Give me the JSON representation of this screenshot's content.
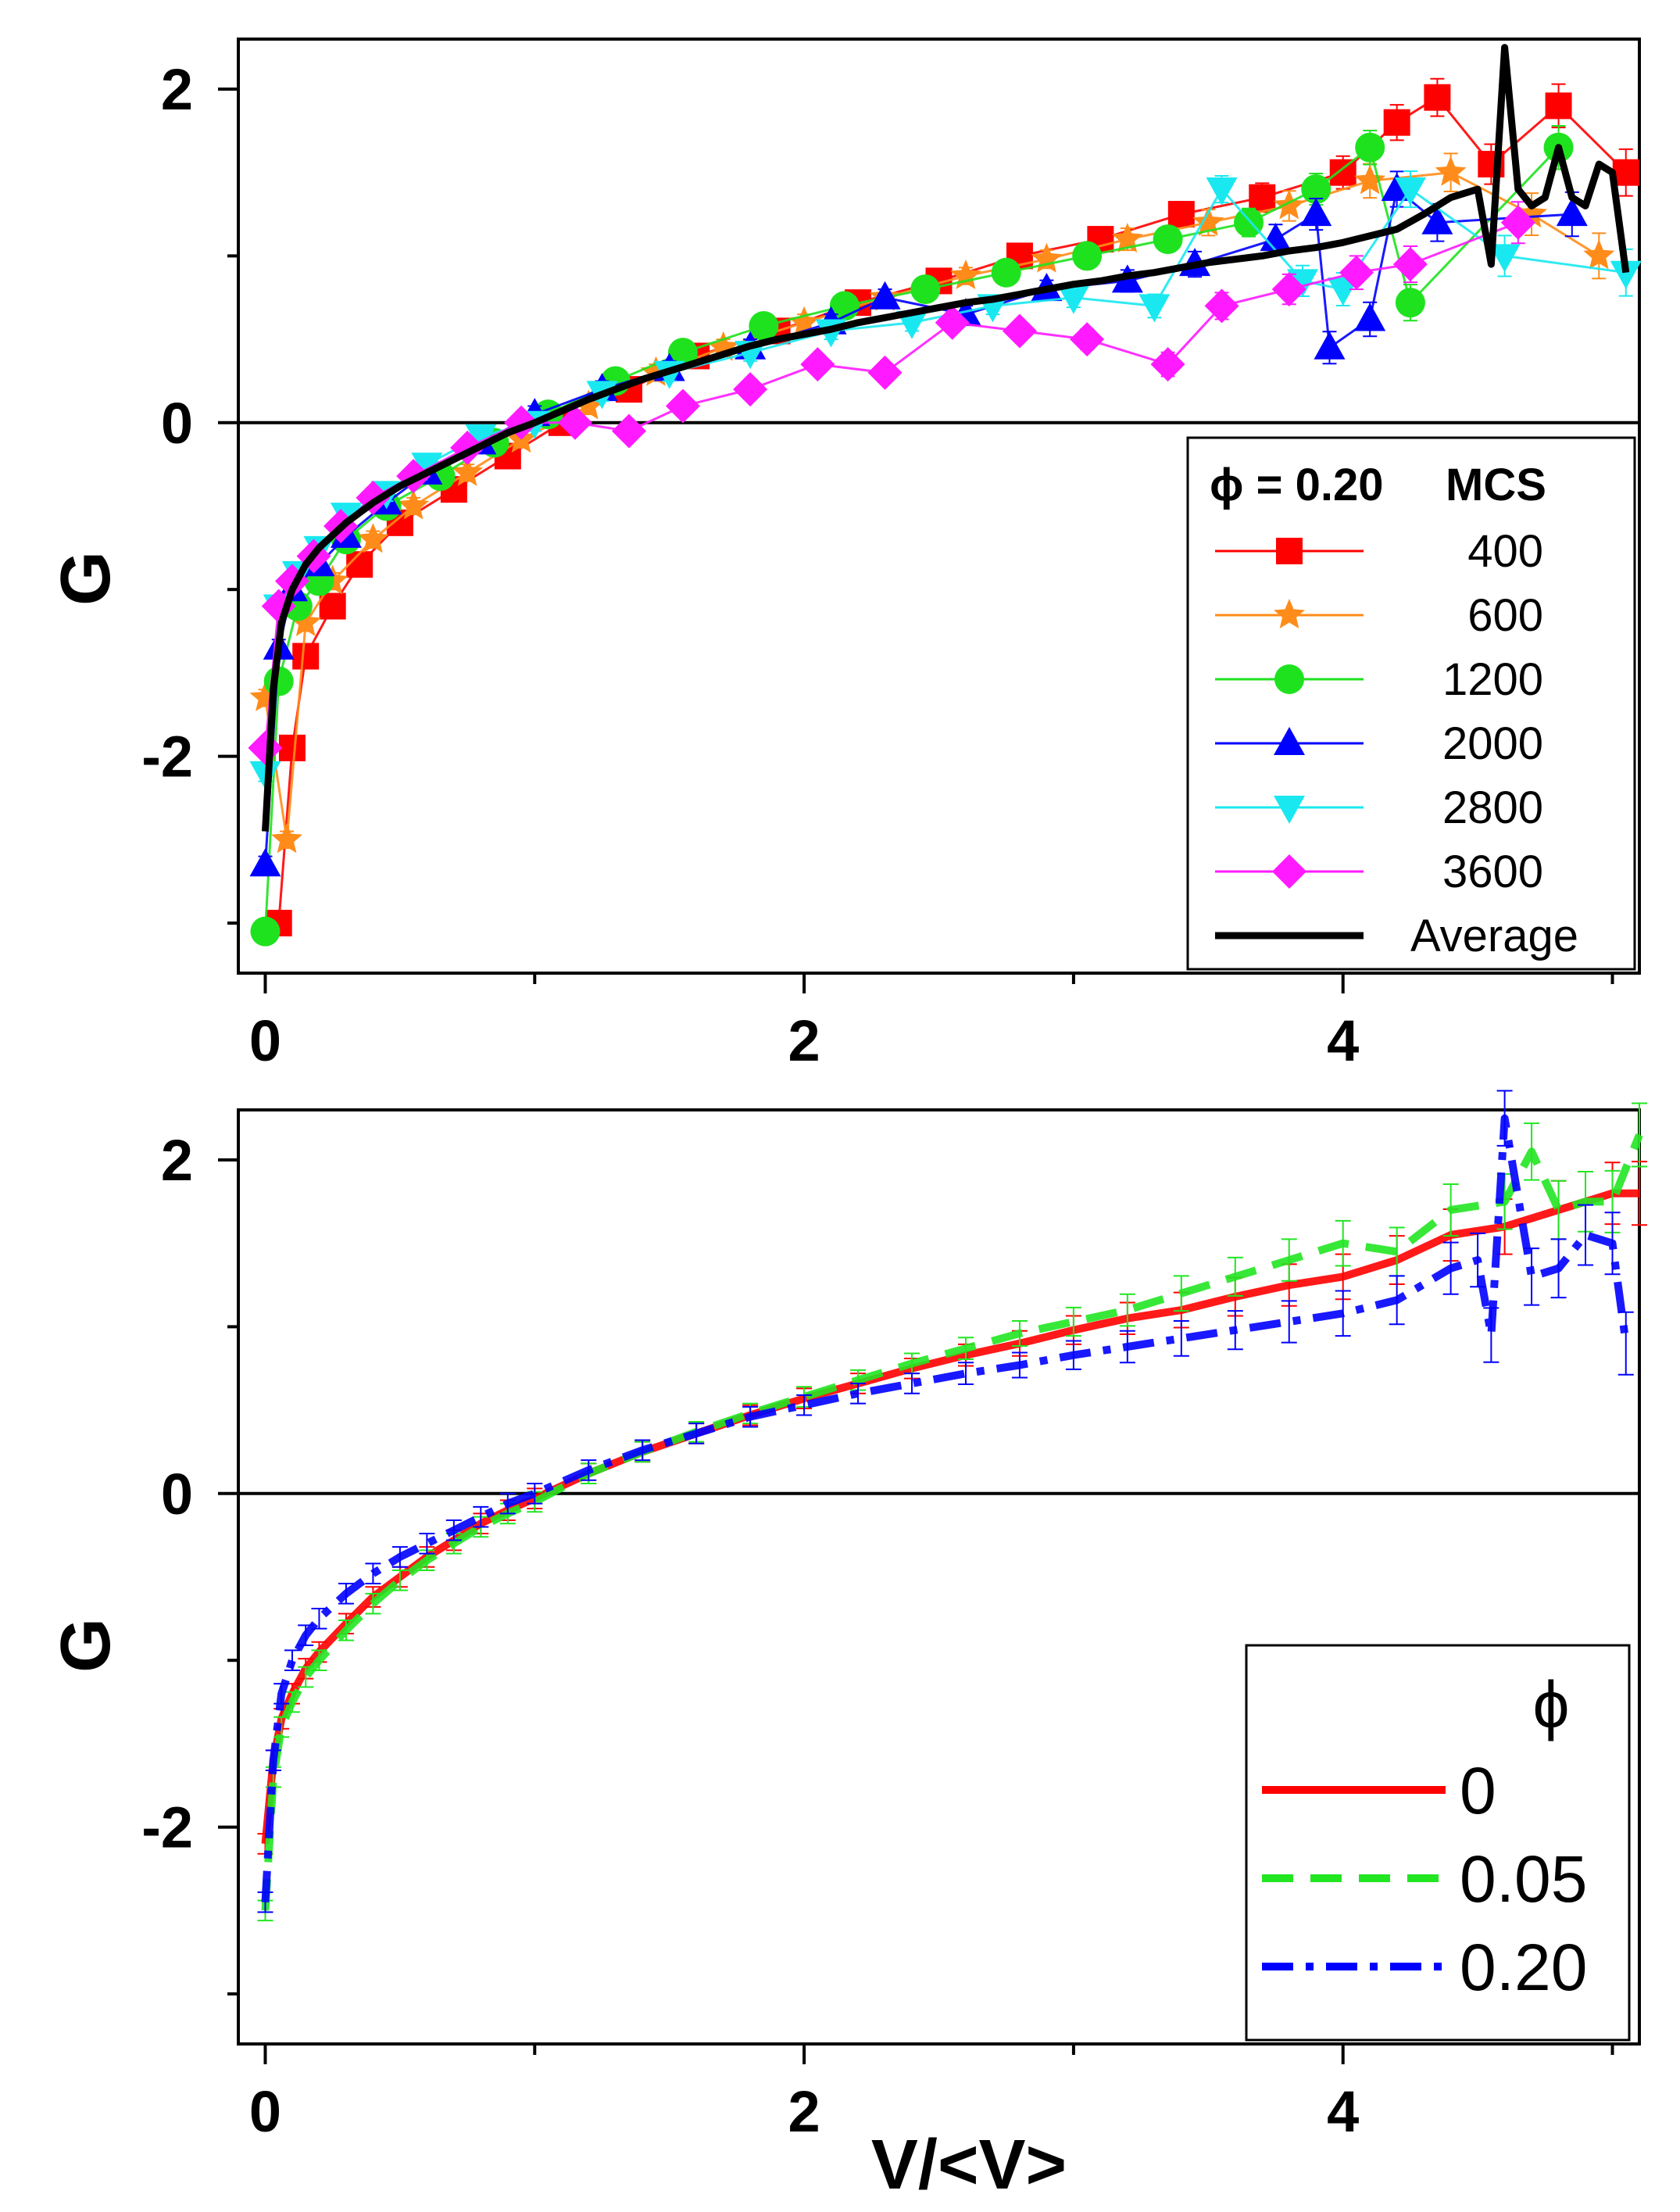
{
  "chart_data": [
    {
      "type": "scatter",
      "title": "",
      "xlabel": "",
      "ylabel": "G",
      "xlim": [
        -0.1,
        5.1
      ],
      "ylim": [
        -3.3,
        2.3
      ],
      "x_ticks": [
        0,
        2,
        4
      ],
      "y_ticks": [
        -2,
        0,
        2
      ],
      "x_tick_labels": [
        "0",
        "2",
        "4"
      ],
      "y_tick_labels": [
        "-2",
        "0",
        "2"
      ],
      "zero_line": true,
      "legend": {
        "placement": "bottom-right",
        "header_left": "ϕ = 0.20",
        "header_right": "MCS",
        "entries": [
          "400",
          "600",
          "1200",
          "2000",
          "2800",
          "3600",
          "Average"
        ]
      },
      "series": [
        {
          "name": "400",
          "color": "#ff0000",
          "marker": "square",
          "x": [
            0.05,
            0.1,
            0.15,
            0.25,
            0.35,
            0.5,
            0.7,
            0.9,
            1.1,
            1.35,
            1.6,
            1.9,
            2.2,
            2.5,
            2.8,
            3.1,
            3.4,
            3.7,
            4.0,
            4.2,
            4.35,
            4.55,
            4.8,
            5.05
          ],
          "y": [
            -3.0,
            -1.95,
            -1.4,
            -1.1,
            -0.85,
            -0.6,
            -0.4,
            -0.2,
            0.0,
            0.2,
            0.4,
            0.55,
            0.72,
            0.85,
            1.0,
            1.1,
            1.25,
            1.35,
            1.5,
            1.8,
            1.95,
            1.55,
            1.9,
            1.5
          ]
        },
        {
          "name": "600",
          "color": "#ff8c1a",
          "marker": "star",
          "x": [
            0.0,
            0.08,
            0.15,
            0.25,
            0.4,
            0.55,
            0.75,
            0.95,
            1.2,
            1.45,
            1.7,
            2.0,
            2.3,
            2.6,
            2.9,
            3.2,
            3.5,
            3.8,
            4.1,
            4.4,
            4.7,
            4.95
          ],
          "y": [
            -1.65,
            -2.5,
            -1.2,
            -0.95,
            -0.7,
            -0.5,
            -0.3,
            -0.1,
            0.1,
            0.3,
            0.45,
            0.6,
            0.75,
            0.88,
            0.98,
            1.1,
            1.2,
            1.3,
            1.45,
            1.5,
            1.25,
            1.0
          ]
        },
        {
          "name": "1200",
          "color": "#1fe21f",
          "marker": "circle",
          "x": [
            0.0,
            0.05,
            0.12,
            0.2,
            0.3,
            0.45,
            0.65,
            0.85,
            1.05,
            1.3,
            1.55,
            1.85,
            2.15,
            2.45,
            2.75,
            3.05,
            3.35,
            3.65,
            3.9,
            4.1,
            4.25,
            4.8
          ],
          "y": [
            -3.05,
            -1.55,
            -1.1,
            -0.95,
            -0.7,
            -0.5,
            -0.32,
            -0.12,
            0.05,
            0.25,
            0.42,
            0.58,
            0.7,
            0.8,
            0.9,
            1.0,
            1.1,
            1.2,
            1.4,
            1.65,
            0.72,
            1.65
          ]
        },
        {
          "name": "2000",
          "color": "#0000ff",
          "marker": "triangle-up",
          "x": [
            0.0,
            0.05,
            0.1,
            0.2,
            0.3,
            0.45,
            0.6,
            0.8,
            1.0,
            1.25,
            1.5,
            1.8,
            2.1,
            2.3,
            2.6,
            2.9,
            3.2,
            3.45,
            3.75,
            3.9,
            3.95,
            4.1,
            4.2,
            4.35,
            4.85
          ],
          "y": [
            -2.65,
            -1.35,
            -1.0,
            -0.85,
            -0.68,
            -0.48,
            -0.3,
            -0.12,
            0.05,
            0.2,
            0.32,
            0.45,
            0.6,
            0.75,
            0.65,
            0.8,
            0.85,
            0.95,
            1.1,
            1.25,
            0.45,
            0.62,
            1.4,
            1.2,
            1.25
          ]
        },
        {
          "name": "2800",
          "color": "#1ae8f0",
          "marker": "triangle-down",
          "x": [
            0.0,
            0.05,
            0.12,
            0.2,
            0.3,
            0.45,
            0.6,
            0.8,
            1.0,
            1.25,
            1.5,
            1.8,
            2.1,
            2.4,
            2.7,
            3.0,
            3.3,
            3.55,
            3.85,
            4.0,
            4.25,
            4.6,
            5.05
          ],
          "y": [
            -2.1,
            -1.1,
            -0.9,
            -0.75,
            -0.55,
            -0.42,
            -0.25,
            -0.08,
            0.0,
            0.18,
            0.3,
            0.42,
            0.55,
            0.6,
            0.7,
            0.75,
            0.7,
            1.4,
            0.85,
            0.8,
            1.4,
            1.0,
            0.9
          ]
        },
        {
          "name": "3600",
          "color": "#ff1aff",
          "marker": "diamond",
          "x": [
            0.0,
            0.05,
            0.1,
            0.18,
            0.28,
            0.4,
            0.55,
            0.75,
            0.95,
            1.15,
            1.35,
            1.55,
            1.8,
            2.05,
            2.3,
            2.55,
            2.8,
            3.05,
            3.35,
            3.55,
            3.8,
            4.05,
            4.25,
            4.65
          ],
          "y": [
            -1.95,
            -1.1,
            -0.95,
            -0.8,
            -0.62,
            -0.45,
            -0.32,
            -0.15,
            0.0,
            0.0,
            -0.05,
            0.1,
            0.2,
            0.35,
            0.3,
            0.6,
            0.55,
            0.5,
            0.35,
            0.7,
            0.8,
            0.9,
            0.95,
            1.2
          ]
        },
        {
          "name": "Average",
          "color": "#000000",
          "marker": "line",
          "x": [
            0.0,
            0.03,
            0.06,
            0.1,
            0.15,
            0.2,
            0.3,
            0.4,
            0.5,
            0.6,
            0.7,
            0.8,
            0.9,
            1.0,
            1.1,
            1.2,
            1.3,
            1.4,
            1.5,
            1.6,
            1.7,
            1.8,
            1.9,
            2.0,
            2.1,
            2.2,
            2.3,
            2.4,
            2.5,
            2.6,
            2.7,
            2.8,
            2.9,
            3.0,
            3.1,
            3.2,
            3.3,
            3.4,
            3.5,
            3.6,
            3.7,
            3.8,
            3.9,
            4.0,
            4.1,
            4.2,
            4.3,
            4.4,
            4.5,
            4.55,
            4.6,
            4.65,
            4.7,
            4.75,
            4.8,
            4.85,
            4.9,
            4.95,
            5.0,
            5.05
          ],
          "y": [
            -2.45,
            -1.6,
            -1.2,
            -1.0,
            -0.85,
            -0.75,
            -0.6,
            -0.48,
            -0.38,
            -0.3,
            -0.22,
            -0.14,
            -0.06,
            0.0,
            0.07,
            0.14,
            0.2,
            0.26,
            0.31,
            0.36,
            0.41,
            0.46,
            0.5,
            0.53,
            0.56,
            0.6,
            0.63,
            0.66,
            0.69,
            0.72,
            0.74,
            0.77,
            0.8,
            0.83,
            0.85,
            0.88,
            0.9,
            0.93,
            0.96,
            0.98,
            1.0,
            1.03,
            1.05,
            1.08,
            1.12,
            1.16,
            1.25,
            1.35,
            1.4,
            0.95,
            2.25,
            1.4,
            1.3,
            1.35,
            1.65,
            1.35,
            1.3,
            1.55,
            1.5,
            0.9
          ]
        }
      ]
    },
    {
      "type": "line",
      "title": "",
      "xlabel": "V/<V>",
      "ylabel": "G",
      "xlim": [
        -0.1,
        5.1
      ],
      "ylim": [
        -3.3,
        2.3
      ],
      "x_ticks": [
        0,
        2,
        4
      ],
      "y_ticks": [
        -2,
        0,
        2
      ],
      "x_tick_labels": [
        "0",
        "2",
        "4"
      ],
      "y_tick_labels": [
        "-2",
        "0",
        "2"
      ],
      "zero_line": true,
      "legend": {
        "placement": "bottom-right",
        "header": "ϕ",
        "entries": [
          "0",
          "0.05",
          "0.20"
        ]
      },
      "series": [
        {
          "name": "0",
          "color": "#ff0000",
          "style": "solid",
          "x": [
            0.0,
            0.03,
            0.06,
            0.1,
            0.15,
            0.2,
            0.3,
            0.4,
            0.5,
            0.6,
            0.7,
            0.8,
            0.9,
            1.0,
            1.2,
            1.4,
            1.6,
            1.8,
            2.0,
            2.2,
            2.4,
            2.6,
            2.8,
            3.0,
            3.2,
            3.4,
            3.6,
            3.8,
            4.0,
            4.2,
            4.4,
            4.6,
            4.8,
            5.0,
            5.1
          ],
          "y": [
            -2.1,
            -1.6,
            -1.35,
            -1.2,
            -1.05,
            -0.95,
            -0.78,
            -0.62,
            -0.5,
            -0.38,
            -0.28,
            -0.18,
            -0.1,
            -0.03,
            0.12,
            0.25,
            0.36,
            0.47,
            0.57,
            0.66,
            0.75,
            0.83,
            0.9,
            0.98,
            1.05,
            1.1,
            1.18,
            1.25,
            1.3,
            1.4,
            1.55,
            1.6,
            1.7,
            1.8,
            1.8
          ]
        },
        {
          "name": "0.05",
          "color": "#22e622",
          "style": "dashed",
          "x": [
            0.0,
            0.03,
            0.06,
            0.1,
            0.15,
            0.2,
            0.3,
            0.4,
            0.5,
            0.6,
            0.7,
            0.8,
            0.9,
            1.0,
            1.2,
            1.4,
            1.6,
            1.8,
            2.0,
            2.2,
            2.4,
            2.6,
            2.8,
            3.0,
            3.2,
            3.4,
            3.6,
            3.8,
            4.0,
            4.2,
            4.4,
            4.6,
            4.7,
            4.8,
            4.9,
            5.0,
            5.1
          ],
          "y": [
            -2.5,
            -1.7,
            -1.4,
            -1.25,
            -1.1,
            -1.0,
            -0.82,
            -0.66,
            -0.52,
            -0.4,
            -0.3,
            -0.2,
            -0.12,
            -0.05,
            0.12,
            0.25,
            0.37,
            0.48,
            0.58,
            0.68,
            0.78,
            0.87,
            0.96,
            1.03,
            1.1,
            1.2,
            1.3,
            1.4,
            1.5,
            1.45,
            1.7,
            1.75,
            2.05,
            1.7,
            1.75,
            1.75,
            2.15
          ]
        },
        {
          "name": "0.20",
          "color": "#0000ff",
          "style": "dash-dot",
          "x": [
            0.0,
            0.03,
            0.06,
            0.1,
            0.15,
            0.2,
            0.3,
            0.4,
            0.5,
            0.6,
            0.7,
            0.8,
            0.9,
            1.0,
            1.2,
            1.4,
            1.6,
            1.8,
            2.0,
            2.2,
            2.4,
            2.6,
            2.8,
            3.0,
            3.2,
            3.4,
            3.6,
            3.8,
            4.0,
            4.2,
            4.4,
            4.5,
            4.55,
            4.6,
            4.7,
            4.8,
            4.9,
            5.0,
            5.05
          ],
          "y": [
            -2.45,
            -1.6,
            -1.2,
            -1.0,
            -0.85,
            -0.75,
            -0.6,
            -0.48,
            -0.38,
            -0.3,
            -0.22,
            -0.14,
            -0.06,
            0.0,
            0.14,
            0.26,
            0.36,
            0.46,
            0.53,
            0.6,
            0.66,
            0.72,
            0.77,
            0.83,
            0.88,
            0.93,
            0.98,
            1.03,
            1.08,
            1.16,
            1.35,
            1.4,
            0.95,
            2.25,
            1.3,
            1.35,
            1.55,
            1.5,
            0.9
          ]
        }
      ]
    }
  ]
}
